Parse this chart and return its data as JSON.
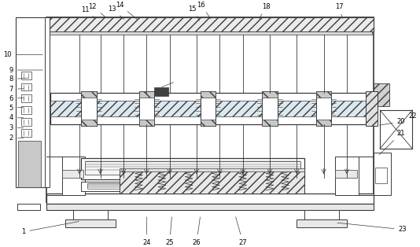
{
  "bg_color": "#ffffff",
  "line_color": "#3a3a3a",
  "label_fs": 6.0,
  "fig_w": 5.34,
  "fig_h": 3.14,
  "dpi": 100
}
